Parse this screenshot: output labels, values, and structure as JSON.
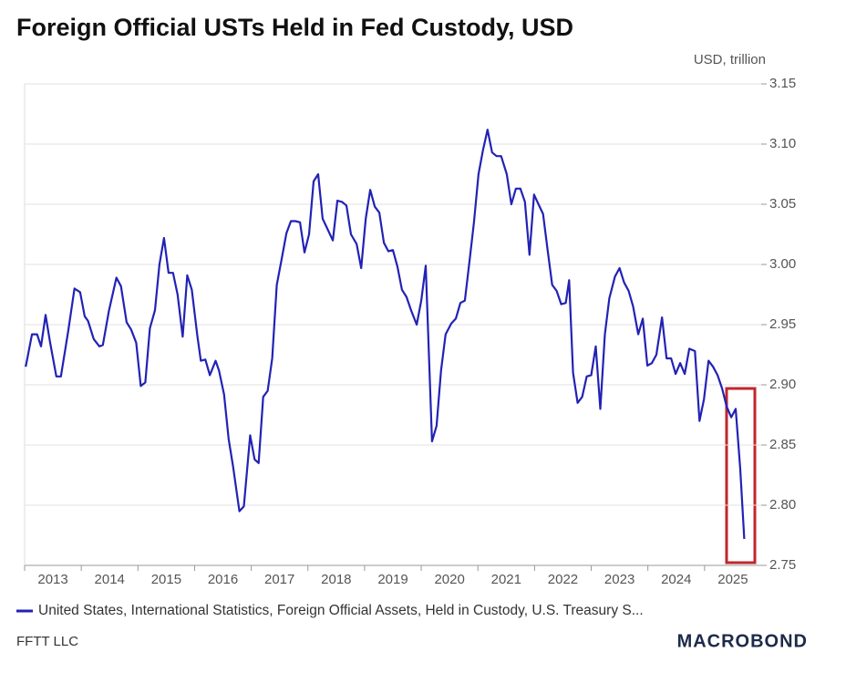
{
  "chart_data": {
    "type": "line",
    "title": "Foreign Official USTs Held in Fed Custody, USD",
    "y_unit": "USD, trillion",
    "source": "FFTT LLC",
    "brand": "MACROBOND",
    "x": [
      2013.02,
      2013.13,
      2013.22,
      2013.29,
      2013.37,
      2013.45,
      2013.56,
      2013.64,
      2013.77,
      2013.88,
      2013.98,
      2014.06,
      2014.12,
      2014.22,
      2014.32,
      2014.38,
      2014.49,
      2014.62,
      2014.7,
      2014.8,
      2014.88,
      2014.97,
      2015.05,
      2015.13,
      2015.21,
      2015.3,
      2015.38,
      2015.46,
      2015.54,
      2015.62,
      2015.7,
      2015.79,
      2015.87,
      2015.95,
      2016.05,
      2016.11,
      2016.19,
      2016.27,
      2016.37,
      2016.43,
      2016.52,
      2016.6,
      2016.68,
      2016.79,
      2016.87,
      2016.98,
      2017.06,
      2017.13,
      2017.21,
      2017.29,
      2017.37,
      2017.45,
      2017.53,
      2017.62,
      2017.7,
      2017.78,
      2017.86,
      2017.94,
      2018.02,
      2018.1,
      2018.18,
      2018.26,
      2018.34,
      2018.44,
      2018.52,
      2018.6,
      2018.68,
      2018.76,
      2018.86,
      2018.94,
      2019.02,
      2019.1,
      2019.18,
      2019.26,
      2019.34,
      2019.42,
      2019.5,
      2019.58,
      2019.66,
      2019.74,
      2019.82,
      2019.92,
      2020.0,
      2020.08,
      2020.19,
      2020.27,
      2020.35,
      2020.43,
      2020.53,
      2020.61,
      2020.69,
      2020.77,
      2020.85,
      2020.93,
      2021.01,
      2021.09,
      2021.17,
      2021.25,
      2021.33,
      2021.41,
      2021.51,
      2021.59,
      2021.67,
      2021.75,
      2021.83,
      2021.91,
      2021.99,
      2022.07,
      2022.15,
      2022.23,
      2022.31,
      2022.39,
      2022.47,
      2022.55,
      2022.61,
      2022.68,
      2022.76,
      2022.84,
      2022.92,
      2023.0,
      2023.08,
      2023.16,
      2023.24,
      2023.32,
      2023.42,
      2023.5,
      2023.58,
      2023.66,
      2023.74,
      2023.83,
      2023.91,
      2023.99,
      2024.07,
      2024.15,
      2024.25,
      2024.33,
      2024.41,
      2024.49,
      2024.57,
      2024.65,
      2024.73,
      2024.83,
      2024.91,
      2024.99,
      2025.07,
      2025.15,
      2025.23,
      2025.31,
      2025.39,
      2025.47,
      2025.55,
      2025.63,
      2025.7
    ],
    "series": [
      {
        "name": "United States, International Statistics, Foreign Official Assets, Held in Custody, U.S. Treasury S...",
        "color": "#2222b5",
        "values": [
          2.915,
          2.942,
          2.942,
          2.932,
          2.958,
          2.935,
          2.907,
          2.907,
          2.945,
          2.98,
          2.977,
          2.957,
          2.953,
          2.938,
          2.932,
          2.933,
          2.962,
          2.989,
          2.982,
          2.952,
          2.946,
          2.935,
          2.899,
          2.902,
          2.947,
          2.962,
          3.0,
          3.022,
          2.993,
          2.993,
          2.975,
          2.94,
          2.991,
          2.979,
          2.94,
          2.92,
          2.921,
          2.908,
          2.92,
          2.912,
          2.892,
          2.855,
          2.832,
          2.795,
          2.799,
          2.858,
          2.838,
          2.835,
          2.89,
          2.895,
          2.922,
          2.983,
          3.003,
          3.026,
          3.036,
          3.036,
          3.035,
          3.01,
          3.025,
          3.069,
          3.075,
          3.038,
          3.03,
          3.02,
          3.053,
          3.052,
          3.049,
          3.025,
          3.017,
          2.997,
          3.038,
          3.062,
          3.048,
          3.043,
          3.018,
          3.011,
          3.012,
          2.998,
          2.979,
          2.973,
          2.962,
          2.95,
          2.97,
          2.999,
          2.853,
          2.866,
          2.912,
          2.942,
          2.951,
          2.955,
          2.968,
          2.97,
          3.002,
          3.035,
          3.075,
          3.095,
          3.112,
          3.093,
          3.09,
          3.09,
          3.075,
          3.05,
          3.063,
          3.063,
          3.052,
          3.008,
          3.058,
          3.05,
          3.042,
          3.012,
          2.983,
          2.978,
          2.967,
          2.968,
          2.987,
          2.91,
          2.885,
          2.89,
          2.907,
          2.908,
          2.932,
          2.88,
          2.942,
          2.972,
          2.99,
          2.997,
          2.985,
          2.978,
          2.965,
          2.942,
          2.955,
          2.916,
          2.918,
          2.925,
          2.956,
          2.922,
          2.922,
          2.909,
          2.918,
          2.909,
          2.93,
          2.928,
          2.87,
          2.888,
          2.92,
          2.915,
          2.908,
          2.897,
          2.882,
          2.873,
          2.88,
          2.83,
          2.772
        ]
      }
    ],
    "xlim": [
      2013,
      2026
    ],
    "xticks": [
      2013,
      2014,
      2015,
      2016,
      2017,
      2018,
      2019,
      2020,
      2021,
      2022,
      2023,
      2024,
      2025
    ],
    "ylim": [
      2.75,
      3.15
    ],
    "yticks": [
      3.15,
      {
        "value": 3.1,
        "label": "3.10"
      },
      3.05,
      {
        "value": 3,
        "label": "3.00"
      },
      2.95,
      {
        "value": 2.9,
        "label": "2.90"
      },
      2.85,
      {
        "value": 2.8,
        "label": "2.80"
      },
      2.75
    ],
    "grid": true
  }
}
